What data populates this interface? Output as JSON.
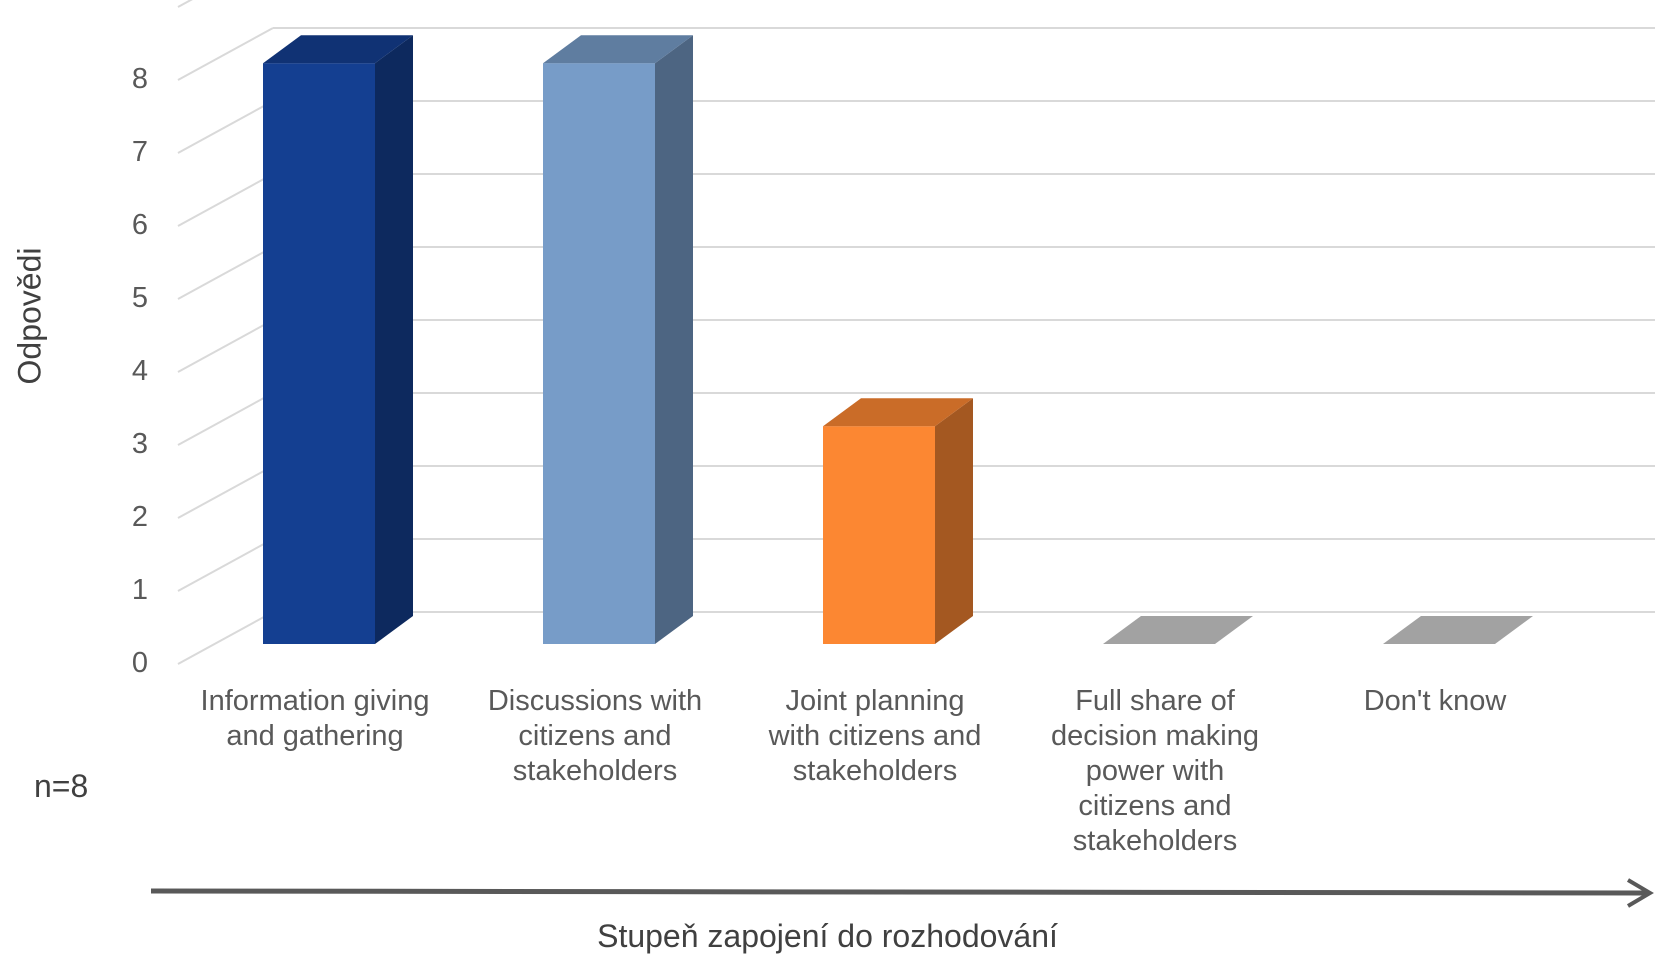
{
  "chart_data": {
    "type": "bar",
    "style": "3d-column",
    "categories": [
      [
        "Information giving",
        "and gathering"
      ],
      [
        "Discussions with",
        "citizens and",
        "stakeholders"
      ],
      [
        "Joint planning",
        "with citizens and",
        "stakeholders"
      ],
      [
        "Full share of",
        "decision making",
        "power with",
        "citizens and",
        "stakeholders"
      ],
      [
        "Don't know"
      ]
    ],
    "values": [
      8,
      8,
      3,
      0,
      0
    ],
    "colors": [
      "#143f91",
      "#779cc8",
      "#fc8732",
      "#a2a2a2",
      "#a2a2a2"
    ],
    "ylabel": "Odpovědi",
    "xlabel": "Stupeň zapojení do rozhodování",
    "ylim": [
      0,
      8
    ],
    "yticks": [
      "0",
      "1",
      "2",
      "3",
      "4",
      "5",
      "6",
      "7",
      "8"
    ],
    "grid": true,
    "note": "n=8"
  }
}
